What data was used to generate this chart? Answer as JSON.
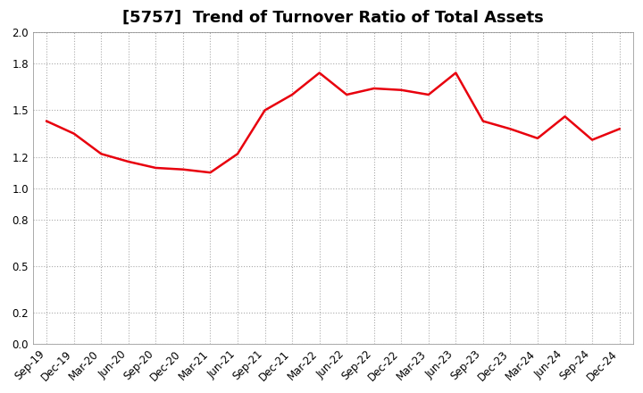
{
  "title": "[5757]  Trend of Turnover Ratio of Total Assets",
  "x_labels": [
    "Sep-19",
    "Dec-19",
    "Mar-20",
    "Jun-20",
    "Sep-20",
    "Dec-20",
    "Mar-21",
    "Jun-21",
    "Sep-21",
    "Dec-21",
    "Mar-22",
    "Jun-22",
    "Sep-22",
    "Dec-22",
    "Mar-23",
    "Jun-23",
    "Sep-23",
    "Dec-23",
    "Mar-24",
    "Jun-24",
    "Sep-24",
    "Dec-24"
  ],
  "values": [
    1.43,
    1.35,
    1.22,
    1.17,
    1.13,
    1.12,
    1.1,
    1.22,
    1.5,
    1.6,
    1.74,
    1.6,
    1.64,
    1.63,
    1.6,
    1.74,
    1.43,
    1.38,
    1.32,
    1.46,
    1.31,
    1.38
  ],
  "line_color": "#e8000d",
  "ylim": [
    0.0,
    2.0
  ],
  "yticks": [
    0.0,
    0.2,
    0.5,
    0.8,
    1.0,
    1.2,
    1.5,
    1.8,
    2.0
  ],
  "background_color": "#ffffff",
  "grid_color": "#aaaaaa",
  "title_fontsize": 13,
  "tick_fontsize": 8.5,
  "line_width": 1.8
}
